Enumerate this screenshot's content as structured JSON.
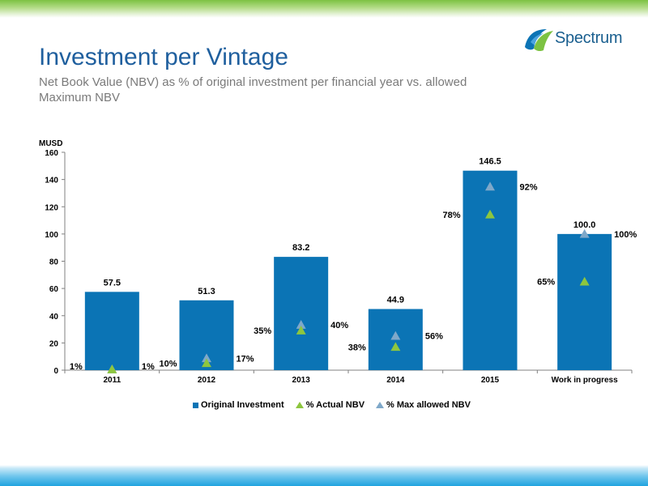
{
  "header": {
    "title": "Investment per Vintage",
    "subtitle": "Net Book Value (NBV) as % of original investment per financial year vs. allowed Maximum NBV"
  },
  "logo": {
    "text": "Spectrum"
  },
  "colors": {
    "bar": "#0b74b5",
    "actual": "#8dc63f",
    "max": "#7fa8c9",
    "title": "#1f5f9e"
  },
  "chart_data": {
    "type": "bar",
    "ylabel": "MUSD",
    "ylim": [
      0,
      160
    ],
    "yticks": [
      0,
      20,
      40,
      60,
      80,
      100,
      120,
      140,
      160
    ],
    "grid": false,
    "legend_position": "bottom",
    "categories": [
      "2011",
      "2012",
      "2013",
      "2014",
      "2015",
      "Work in progress"
    ],
    "series": [
      {
        "name": "Original Investment",
        "type": "bar",
        "values": [
          57.5,
          51.3,
          83.2,
          44.9,
          146.5,
          100.0
        ],
        "labels": [
          "57.5",
          "51.3",
          "83.2",
          "44.9",
          "146.5",
          "100.0"
        ]
      },
      {
        "name": "% Actual NBV",
        "type": "marker",
        "values": [
          1,
          10,
          35,
          38,
          78,
          65
        ],
        "labels": [
          "1%",
          "10%",
          "35%",
          "38%",
          "78%",
          "65%"
        ]
      },
      {
        "name": "% Max allowed NBV",
        "type": "marker",
        "values": [
          1,
          17,
          40,
          56,
          92,
          100
        ],
        "labels": [
          "1%",
          "17%",
          "40%",
          "56%",
          "92%",
          "100%"
        ]
      }
    ]
  }
}
